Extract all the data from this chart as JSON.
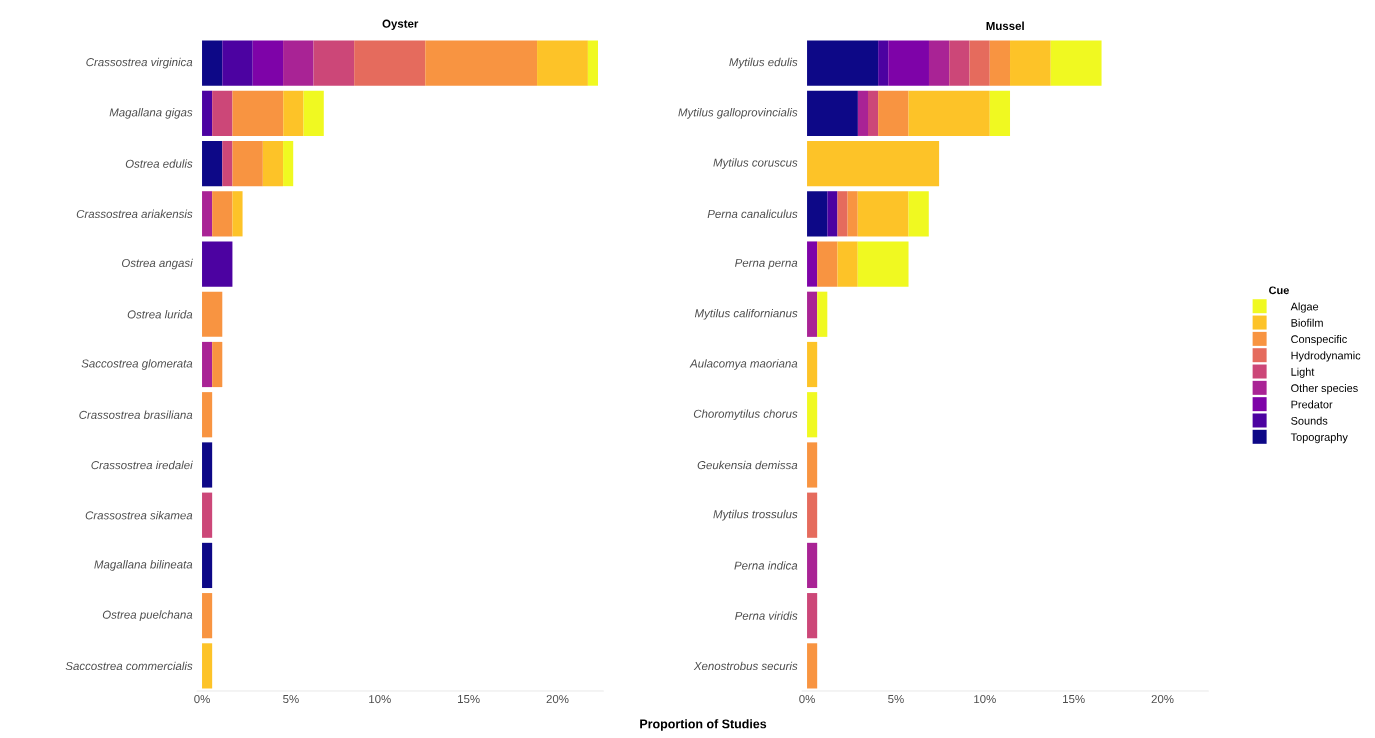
{
  "chart_data": [
    {
      "type": "bar",
      "orientation": "horizontal",
      "stacked": true,
      "title": "Oyster",
      "xlabel": "Proportion of Studies",
      "categories": [
        "Crassostrea virginica",
        "Magallana gigas",
        "Ostrea edulis",
        "Crassostrea ariakensis",
        "Ostrea angasi",
        "Ostrea lurida",
        "Saccostrea glomerata",
        "Crassostrea brasiliana",
        "Crassostrea iredalei",
        "Crassostrea sikamea",
        "Magallana bilineata",
        "Ostrea puelchana",
        "Saccostrea commercialis"
      ],
      "xlim": [
        -0.3,
        22.6
      ],
      "xticks": [
        {
          "value": 0,
          "label": "0%"
        },
        {
          "value": 5,
          "label": "5%"
        },
        {
          "value": 10,
          "label": "10%"
        },
        {
          "value": 15,
          "label": "15%"
        },
        {
          "value": 20,
          "label": "20%"
        }
      ],
      "grid": false,
      "legend": false,
      "series": [
        {
          "color": "#0d0887",
          "values": [
            1.14,
            null,
            1.14,
            null,
            null,
            null,
            null,
            null,
            0.57,
            null,
            0.57,
            null,
            null
          ]
        },
        {
          "color": "#4c02a1",
          "values": [
            1.71,
            0.57,
            null,
            null,
            1.71,
            null,
            null,
            null,
            null,
            null,
            null,
            null,
            null
          ]
        },
        {
          "color": "#7e03a8",
          "values": [
            1.71,
            null,
            null,
            null,
            null,
            null,
            null,
            null,
            null,
            null,
            null,
            null,
            null
          ]
        },
        {
          "color": "#a92395",
          "values": [
            1.71,
            null,
            null,
            0.57,
            null,
            null,
            0.57,
            null,
            null,
            null,
            null,
            null,
            null
          ]
        },
        {
          "color": "#cc4778",
          "values": [
            2.29,
            1.14,
            0.57,
            null,
            null,
            null,
            null,
            null,
            null,
            0.57,
            null,
            null,
            null
          ]
        },
        {
          "color": "#e56b5d",
          "values": [
            4.0,
            null,
            null,
            null,
            null,
            null,
            null,
            null,
            null,
            null,
            null,
            null,
            null
          ]
        },
        {
          "color": "#f89441",
          "values": [
            6.29,
            2.86,
            1.71,
            1.14,
            null,
            1.14,
            0.57,
            0.57,
            null,
            null,
            null,
            0.57,
            null
          ]
        },
        {
          "color": "#fdc328",
          "values": [
            2.86,
            1.14,
            1.14,
            0.57,
            null,
            null,
            null,
            null,
            null,
            null,
            null,
            null,
            0.57
          ]
        },
        {
          "color": "#f0f921",
          "values": [
            0.57,
            1.14,
            0.57,
            null,
            null,
            null,
            null,
            null,
            null,
            null,
            null,
            null,
            null
          ]
        }
      ]
    },
    {
      "type": "bar",
      "orientation": "horizontal",
      "stacked": true,
      "title": "Mussel",
      "legend_title": "Cue",
      "categories": [
        "Mytilus edulis",
        "Mytilus galloprovincialis",
        "Mytilus coruscus",
        "Perna canaliculus",
        "Perna perna",
        "Mytilus californianus",
        "Aulacomya maoriana",
        "Choromytilus chorus",
        "Geukensia demissa",
        "Mytilus trossulus",
        "Perna indica",
        "Perna viridis",
        "Xenostrobus securis"
      ],
      "xlim": [
        -0.3,
        22.6
      ],
      "xticks": [
        {
          "value": 0,
          "label": "0%"
        },
        {
          "value": 5,
          "label": "5%"
        },
        {
          "value": 10,
          "label": "10%"
        },
        {
          "value": 15,
          "label": "15%"
        },
        {
          "value": 20,
          "label": "20%"
        }
      ],
      "grid": false,
      "legend": "right",
      "series": [
        {
          "name": "Topography",
          "color": "#0d0887",
          "values": [
            4.0,
            2.86,
            null,
            1.14,
            null,
            null,
            null,
            null,
            null,
            null,
            null,
            null,
            null
          ]
        },
        {
          "name": "Sounds",
          "color": "#4c02a1",
          "values": [
            0.57,
            null,
            null,
            0.57,
            null,
            null,
            null,
            null,
            null,
            null,
            null,
            null,
            null
          ]
        },
        {
          "name": "Predator",
          "color": "#7e03a8",
          "values": [
            2.29,
            null,
            null,
            null,
            0.57,
            null,
            null,
            null,
            null,
            null,
            null,
            null,
            null
          ]
        },
        {
          "name": "Other species",
          "color": "#a92395",
          "values": [
            1.14,
            0.57,
            null,
            null,
            null,
            0.57,
            null,
            null,
            null,
            null,
            0.57,
            null,
            null
          ]
        },
        {
          "name": "Light",
          "color": "#cc4778",
          "values": [
            1.14,
            0.57,
            null,
            null,
            null,
            null,
            null,
            null,
            null,
            null,
            null,
            0.57,
            null
          ]
        },
        {
          "name": "Hydrodynamic",
          "color": "#e56b5d",
          "values": [
            1.14,
            null,
            null,
            0.57,
            null,
            null,
            null,
            null,
            null,
            0.57,
            null,
            null,
            null
          ]
        },
        {
          "name": "Conspecific",
          "color": "#f89441",
          "values": [
            1.14,
            1.71,
            null,
            0.57,
            1.14,
            null,
            null,
            null,
            0.57,
            null,
            null,
            null,
            0.57
          ]
        },
        {
          "name": "Biofilm",
          "color": "#fdc328",
          "values": [
            2.29,
            4.57,
            7.43,
            2.86,
            1.14,
            null,
            0.57,
            null,
            null,
            null,
            null,
            null,
            null
          ]
        },
        {
          "name": "Algae",
          "color": "#f0f921",
          "values": [
            2.86,
            1.14,
            null,
            1.14,
            2.86,
            0.57,
            null,
            0.57,
            null,
            null,
            null,
            null,
            null
          ]
        }
      ]
    }
  ]
}
